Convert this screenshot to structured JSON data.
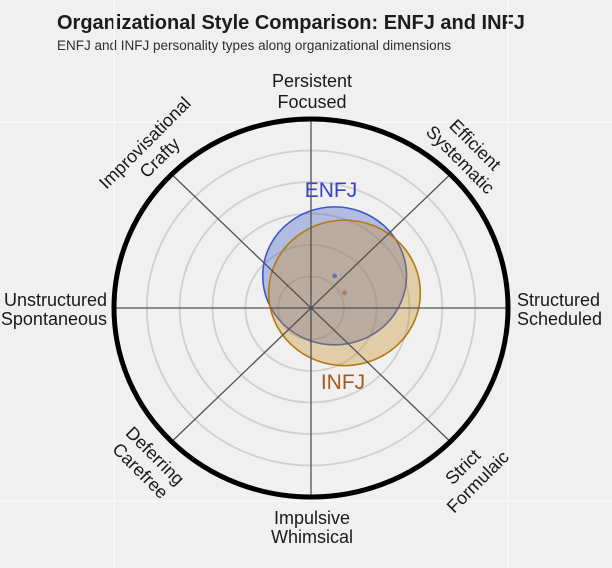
{
  "header": {
    "title": "Organizational Style Comparison: ENFJ and INFJ",
    "subtitle": "ENFJ and INFJ personality types along organizational dimensions"
  },
  "chart_data": {
    "type": "radar",
    "title": "Organizational Style Comparison: ENFJ and INFJ",
    "subtitle": "ENFJ and INFJ personality types along organizational dimensions",
    "grid": {
      "rings": 6,
      "ring_color": "#cfcfcf",
      "outer_ring_color": "#000000",
      "spoke_color": "#525252",
      "background": "#f0f0f0",
      "faint_line_color": "#f8f8f8"
    },
    "axes": [
      {
        "id": "top",
        "line1": "Persistent",
        "line2": "Focused"
      },
      {
        "id": "top-right",
        "line1": "Efficient",
        "line2": "Systematic"
      },
      {
        "id": "right",
        "line1": "Structured",
        "line2": "Scheduled"
      },
      {
        "id": "bottom-right",
        "line1": "Strict",
        "line2": "Formulaic"
      },
      {
        "id": "bottom",
        "line1": "Impulsive",
        "line2": "Whimsical"
      },
      {
        "id": "bottom-left",
        "line1": "Deferring",
        "line2": "Carefree"
      },
      {
        "id": "left",
        "line1": "Unstructured",
        "line2": "Spontaneous"
      },
      {
        "id": "top-left",
        "line1": "Improvisational",
        "line2": "Crafty"
      }
    ],
    "series": [
      {
        "name": "ENFJ",
        "center": {
          "x": 0.12,
          "y": 0.17
        },
        "radius": 0.365,
        "stroke": "#3c58c4",
        "fill": "rgba(63,91,200,0.35)",
        "dot_color": "#6b74ae",
        "label_color": "#3346bf"
      },
      {
        "name": "INFJ",
        "center": {
          "x": 0.17,
          "y": 0.08
        },
        "radius": 0.385,
        "stroke": "#b5790f",
        "fill": "rgba(197,140,34,0.35)",
        "dot_color": "#a08066",
        "label_color": "#a4591b"
      }
    ]
  }
}
